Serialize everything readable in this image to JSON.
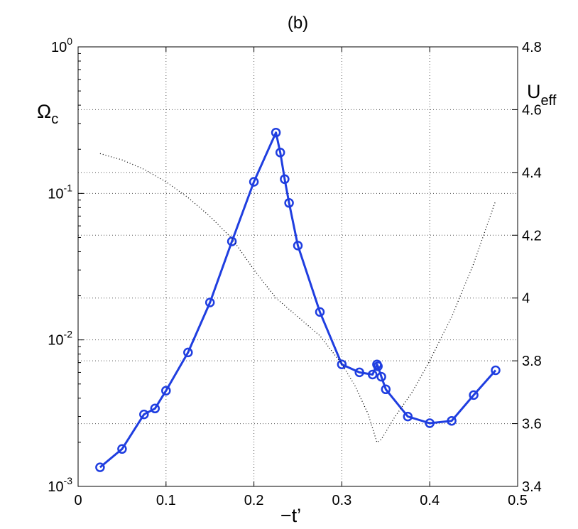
{
  "chart_data": {
    "type": "line",
    "title": "(b)",
    "xlabel": "−t’",
    "ylabel_left": {
      "base": "Ω",
      "sub": "c"
    },
    "ylabel_right": {
      "base": "U",
      "sub": "eff"
    },
    "xlim": [
      0,
      0.5
    ],
    "ylim_left": [
      0.001,
      1
    ],
    "ylim_right": [
      3.4,
      4.8
    ],
    "left_scale": "log",
    "grid": true,
    "x_ticks": [
      "0",
      "0.1",
      "0.2",
      "0.3",
      "0.4",
      "0.5"
    ],
    "y_left_ticks": [
      {
        "base": "10",
        "exp": "-3",
        "value": 0.001
      },
      {
        "base": "10",
        "exp": "-2",
        "value": 0.01
      },
      {
        "base": "10",
        "exp": "-1",
        "value": 0.1
      },
      {
        "base": "10",
        "exp": "0",
        "value": 1
      }
    ],
    "y_right_ticks": [
      "3.4",
      "3.6",
      "3.8",
      "4",
      "4.2",
      "4.4",
      "4.6",
      "4.8"
    ],
    "series": [
      {
        "axis": "left",
        "color": "#1f3ee0",
        "style": "solid-circles",
        "x": [
          0.025,
          0.05,
          0.075,
          0.0875,
          0.1,
          0.125,
          0.15,
          0.175,
          0.2,
          0.225,
          0.23,
          0.235,
          0.24,
          0.25,
          0.275,
          0.3,
          0.32,
          0.335,
          0.34,
          0.341,
          0.345,
          0.35,
          0.375,
          0.4,
          0.425,
          0.45,
          0.475
        ],
        "y": [
          0.00135,
          0.0018,
          0.0031,
          0.0034,
          0.0045,
          0.0082,
          0.018,
          0.047,
          0.12,
          0.26,
          0.19,
          0.125,
          0.086,
          0.044,
          0.0155,
          0.0068,
          0.006,
          0.0058,
          0.0068,
          0.0066,
          0.0056,
          0.0046,
          0.003,
          0.0027,
          0.0028,
          0.0042,
          0.0062
        ]
      },
      {
        "axis": "right",
        "color": "#000000",
        "style": "dotted",
        "x": [
          0.025,
          0.05,
          0.075,
          0.1,
          0.125,
          0.15,
          0.175,
          0.2,
          0.225,
          0.25,
          0.275,
          0.3,
          0.315,
          0.33,
          0.34,
          0.345,
          0.36,
          0.38,
          0.4,
          0.425,
          0.45,
          0.475
        ],
        "y": [
          4.46,
          4.44,
          4.41,
          4.37,
          4.32,
          4.26,
          4.19,
          4.09,
          4.0,
          3.94,
          3.88,
          3.79,
          3.72,
          3.63,
          3.54,
          3.55,
          3.62,
          3.7,
          3.8,
          3.94,
          4.11,
          4.31
        ]
      }
    ]
  }
}
